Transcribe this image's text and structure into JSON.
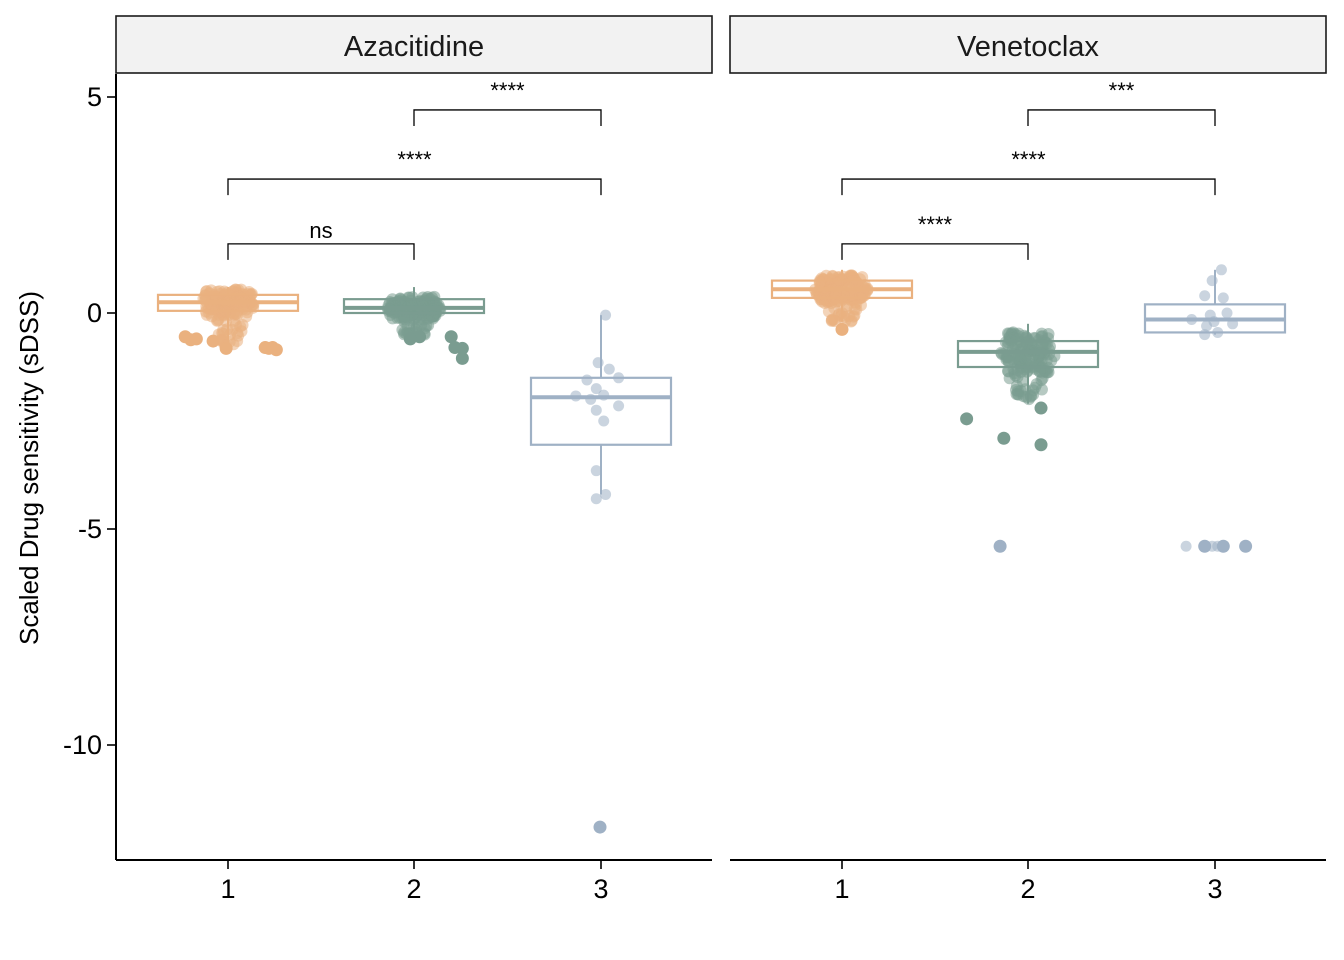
{
  "chart_data": {
    "type": "box",
    "ylabel": "Scaled Drug sensitivity (sDSS)",
    "xlabel": "",
    "ylim": [
      -12.7,
      5.5
    ],
    "y_ticks": [
      5,
      0,
      -5,
      -10
    ],
    "y_tick_labels": [
      "5",
      "0",
      "-5",
      "-10"
    ],
    "categories": [
      "1",
      "2",
      "3"
    ],
    "colors": {
      "1": "#eab17f",
      "2": "#7a9c90",
      "3": "#9fb1c5"
    },
    "panels": [
      {
        "name": "Azacitidine",
        "boxes": [
          {
            "group": "1",
            "q1": 0.05,
            "median": 0.25,
            "q3": 0.42,
            "whisker_low": -0.75,
            "whisker_high": 0.6,
            "outliers": [
              -0.55,
              -0.62,
              -0.65,
              -0.6,
              -0.8,
              -0.82,
              -0.8,
              -0.85,
              -0.82
            ],
            "outlier_x": [
              0.77,
              0.8,
              0.92,
              0.83,
              1.2,
              1.22,
              1.24,
              1.26,
              0.99
            ]
          },
          {
            "group": "2",
            "q1": 0.0,
            "median": 0.12,
            "q3": 0.32,
            "whisker_low": -0.5,
            "whisker_high": 0.6,
            "outliers": [
              -0.55,
              -0.8,
              -0.82,
              -1.05,
              -0.55,
              -0.6
            ],
            "outlier_x": [
              2.2,
              2.22,
              2.26,
              2.26,
              2.03,
              1.98
            ]
          },
          {
            "group": "3",
            "q1": -3.05,
            "median": -1.95,
            "q3": -1.5,
            "whisker_low": -4.2,
            "whisker_high": -0.05,
            "outliers": [
              -11.9
            ],
            "outlier_x": [
              3.0
            ]
          }
        ],
        "points_group3": [
          [
            3.03,
            -0.05
          ],
          [
            2.99,
            -1.15
          ],
          [
            3.05,
            -1.3
          ],
          [
            2.93,
            -1.55
          ],
          [
            3.1,
            -1.5
          ],
          [
            2.98,
            -1.75
          ],
          [
            3.02,
            -1.9
          ],
          [
            2.87,
            -1.92
          ],
          [
            2.95,
            -2.0
          ],
          [
            3.1,
            -2.15
          ],
          [
            2.98,
            -2.25
          ],
          [
            3.02,
            -2.5
          ],
          [
            2.98,
            -3.65
          ],
          [
            3.03,
            -4.2
          ],
          [
            2.98,
            -4.3
          ]
        ],
        "comparisons": [
          {
            "from": "2",
            "to": "3",
            "label": "****"
          },
          {
            "from": "1",
            "to": "3",
            "label": "****"
          },
          {
            "from": "1",
            "to": "2",
            "label": "ns"
          }
        ]
      },
      {
        "name": "Venetoclax",
        "boxes": [
          {
            "group": "1",
            "q1": 0.35,
            "median": 0.55,
            "q3": 0.75,
            "whisker_low": -0.2,
            "whisker_high": 1.0,
            "outliers": [
              -0.38
            ],
            "outlier_x": [
              1.0
            ]
          },
          {
            "group": "2",
            "q1": -1.25,
            "median": -0.9,
            "q3": -0.65,
            "whisker_low": -2.1,
            "whisker_high": -0.25,
            "outliers": [
              -2.45,
              -2.9,
              -3.05,
              -2.2
            ],
            "outlier_x": [
              1.67,
              1.87,
              2.07,
              2.07
            ]
          },
          {
            "group": "3",
            "q1": -0.45,
            "median": -0.15,
            "q3": 0.2,
            "whisker_low": -0.5,
            "whisker_high": 1.0,
            "outliers": [
              -5.4,
              -5.4,
              -5.4,
              -5.4
            ],
            "outlier_x": [
              1.85,
              2.95,
              3.05,
              3.17
            ]
          }
        ],
        "points_group3": [
          [
            3.04,
            1.0
          ],
          [
            2.99,
            0.75
          ],
          [
            2.95,
            0.4
          ],
          [
            3.05,
            0.35
          ],
          [
            3.07,
            0.0
          ],
          [
            2.98,
            -0.05
          ],
          [
            2.88,
            -0.15
          ],
          [
            3.0,
            -0.2
          ],
          [
            2.96,
            -0.3
          ],
          [
            3.1,
            -0.25
          ],
          [
            3.02,
            -0.45
          ],
          [
            2.95,
            -0.5
          ],
          [
            2.85,
            -5.4
          ],
          [
            2.99,
            -5.4
          ],
          [
            3.02,
            -5.4
          ]
        ],
        "comparisons": [
          {
            "from": "2",
            "to": "3",
            "label": "***"
          },
          {
            "from": "1",
            "to": "3",
            "label": "****"
          },
          {
            "from": "1",
            "to": "2",
            "label": "****"
          }
        ]
      }
    ]
  }
}
